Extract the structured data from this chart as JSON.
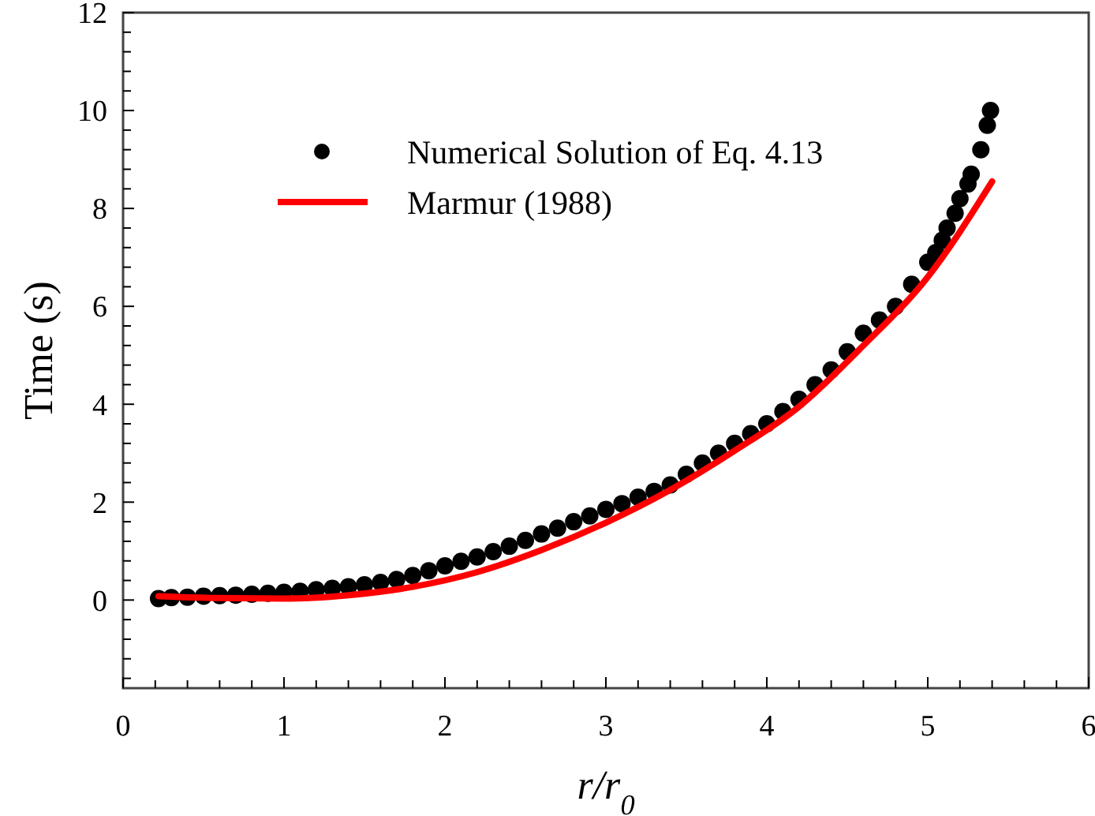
{
  "chart_data": {
    "type": "scatter",
    "xlabel": "r/r$_{0}$",
    "ylabel": "Time (s)",
    "xlim": [
      0,
      6
    ],
    "ylim": [
      -1.8,
      12
    ],
    "xticks": [
      0,
      {
        "value": 0.2,
        "label": null
      },
      {
        "value": 0.4,
        "label": null
      },
      {
        "value": 0.6,
        "label": null
      },
      {
        "value": 0.8,
        "label": null
      },
      1,
      {
        "value": 1.2,
        "label": null
      },
      {
        "value": 1.4,
        "label": null
      },
      {
        "value": 1.6,
        "label": null
      },
      {
        "value": 1.8,
        "label": null
      },
      2,
      {
        "value": 2.2,
        "label": null
      },
      {
        "value": 2.4,
        "label": null
      },
      {
        "value": 2.6,
        "label": null
      },
      {
        "value": 2.8,
        "label": null
      },
      3,
      {
        "value": 3.2,
        "label": null
      },
      {
        "value": 3.4,
        "label": null
      },
      {
        "value": 3.6,
        "label": null
      },
      {
        "value": 3.8,
        "label": null
      },
      4,
      {
        "value": 4.2,
        "label": null
      },
      {
        "value": 4.4,
        "label": null
      },
      {
        "value": 4.6,
        "label": null
      },
      {
        "value": 4.8,
        "label": null
      },
      5,
      {
        "value": 5.2,
        "label": null
      },
      {
        "value": 5.4,
        "label": null
      },
      {
        "value": 5.6,
        "label": null
      },
      {
        "value": 5.8,
        "label": null
      },
      6
    ],
    "yticks": [
      {
        "value": -1.6,
        "label": null
      },
      {
        "value": -1.2,
        "label": null
      },
      {
        "value": -0.8,
        "label": null
      },
      {
        "value": -0.4,
        "label": null
      },
      0,
      {
        "value": 0.4,
        "label": null
      },
      {
        "value": 0.8,
        "label": null
      },
      {
        "value": 1.2,
        "label": null
      },
      {
        "value": 1.6,
        "label": null
      },
      2,
      {
        "value": 2.4,
        "label": null
      },
      {
        "value": 2.8,
        "label": null
      },
      {
        "value": 3.2,
        "label": null
      },
      {
        "value": 3.6,
        "label": null
      },
      4,
      {
        "value": 4.4,
        "label": null
      },
      {
        "value": 4.8,
        "label": null
      },
      {
        "value": 5.2,
        "label": null
      },
      {
        "value": 5.6,
        "label": null
      },
      6,
      {
        "value": 6.4,
        "label": null
      },
      {
        "value": 6.8,
        "label": null
      },
      {
        "value": 7.2,
        "label": null
      },
      {
        "value": 7.6,
        "label": null
      },
      8,
      {
        "value": 8.4,
        "label": null
      },
      {
        "value": 8.8,
        "label": null
      },
      {
        "value": 9.2,
        "label": null
      },
      {
        "value": 9.6,
        "label": null
      },
      10,
      {
        "value": 10.4,
        "label": null
      },
      {
        "value": 10.8,
        "label": null
      },
      {
        "value": 11.2,
        "label": null
      },
      {
        "value": 11.6,
        "label": null
      },
      12
    ],
    "grid": false,
    "legend": "top left",
    "series": [
      {
        "name": "Numerical Solution of Eq. 4.13",
        "marker": "circle",
        "color": "#000000",
        "x": [
          0.22,
          0.3,
          0.4,
          0.5,
          0.6,
          0.7,
          0.8,
          0.9,
          1.0,
          1.1,
          1.2,
          1.3,
          1.4,
          1.5,
          1.6,
          1.7,
          1.8,
          1.9,
          2.0,
          2.1,
          2.2,
          2.3,
          2.4,
          2.5,
          2.6,
          2.7,
          2.8,
          2.9,
          3.0,
          3.1,
          3.2,
          3.3,
          3.4,
          3.5,
          3.6,
          3.7,
          3.8,
          3.9,
          4.0,
          4.1,
          4.2,
          4.3,
          4.4,
          4.5,
          4.6,
          4.7,
          4.8,
          4.9,
          5.0,
          5.05,
          5.09,
          5.12,
          5.17,
          5.2,
          5.25,
          5.27,
          5.33,
          5.37,
          5.39
        ],
        "values": [
          0.03,
          0.05,
          0.06,
          0.08,
          0.09,
          0.1,
          0.12,
          0.14,
          0.16,
          0.18,
          0.21,
          0.24,
          0.27,
          0.31,
          0.36,
          0.42,
          0.5,
          0.6,
          0.7,
          0.79,
          0.88,
          0.99,
          1.1,
          1.22,
          1.35,
          1.47,
          1.6,
          1.72,
          1.85,
          1.97,
          2.1,
          2.22,
          2.35,
          2.57,
          2.8,
          3.0,
          3.2,
          3.4,
          3.6,
          3.85,
          4.1,
          4.4,
          4.7,
          5.07,
          5.45,
          5.72,
          6.0,
          6.45,
          6.9,
          7.1,
          7.35,
          7.6,
          7.9,
          8.2,
          8.5,
          8.7,
          9.2,
          9.7,
          10.0
        ]
      },
      {
        "name": "Marmur (1988)",
        "type": "line",
        "marker": "none",
        "line_style": "solid",
        "color": "#ff0000",
        "x": [
          0.22,
          0.6,
          1.0,
          1.4,
          1.8,
          2.2,
          2.6,
          3.0,
          3.4,
          3.8,
          4.2,
          4.6,
          5.0,
          5.4
        ],
        "values": [
          0.08,
          0.04,
          0.03,
          0.1,
          0.27,
          0.57,
          1.02,
          1.58,
          2.25,
          3.05,
          3.95,
          5.2,
          6.6,
          8.55
        ]
      }
    ]
  }
}
